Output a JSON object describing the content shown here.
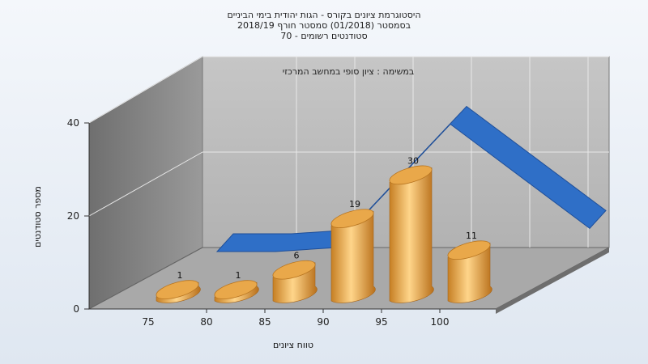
{
  "chart_data": {
    "type": "bar",
    "title_lines": [
      "היסטוגרמת ציונים בקורס - הגות יהודית בימי הביניים",
      "בסמסטר  (01/2018)  סמסטר חורף 2018/19",
      "סטודנטים רשומים - 70"
    ],
    "subtitle": "במשימה : ציון סופי במחשב המרכזי",
    "xlabel": "טווח ציונים",
    "ylabel": "מספר סטודנטים",
    "x_ticks": [
      "75",
      "80",
      "85",
      "90",
      "95",
      "100"
    ],
    "y_ticks": [
      "0",
      "20",
      "40"
    ],
    "ylim": [
      0,
      40
    ],
    "categories": [
      "75-80",
      "80-85",
      "85-90",
      "90-95",
      "95-100",
      "100+"
    ],
    "values": [
      1,
      1,
      6,
      19,
      30,
      11
    ],
    "curve_values": [
      5,
      5,
      6,
      22,
      38,
      11
    ],
    "bar_color": "#e9a84a",
    "curve_color": "#2f6fc7",
    "back_wall_color": "#b9b9b9",
    "side_wall_color": "#8a8a8a",
    "floor_color": "#a8a8a8",
    "grid": true,
    "legend": "none"
  }
}
